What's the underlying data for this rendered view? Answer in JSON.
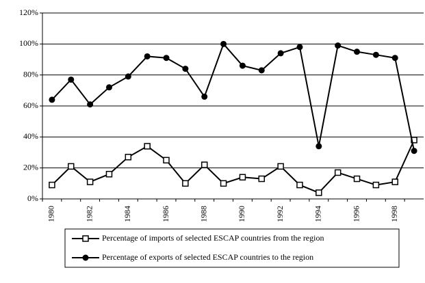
{
  "chart_data": {
    "type": "line",
    "categories": [
      "1980",
      null,
      "1982",
      null,
      "1984",
      null,
      "1986",
      null,
      "1988",
      null,
      "1990",
      null,
      "1992",
      null,
      "1994",
      null,
      "1996",
      null,
      "1998",
      null
    ],
    "series": [
      {
        "name": "Percentage of imports of selected ESCAP countries from the region",
        "color": "#000000",
        "marker": "square",
        "values": [
          9,
          21,
          11,
          16,
          27,
          34,
          25,
          10,
          22,
          10,
          14,
          13,
          21,
          9,
          4,
          17,
          13,
          9,
          11,
          38
        ]
      },
      {
        "name": "Percentage  of exports of selected ESCAP countries to the region",
        "color": "#000000",
        "marker": "circle",
        "values": [
          64,
          77,
          61,
          72,
          79,
          92,
          91,
          84,
          66,
          100,
          86,
          83,
          94,
          98,
          34,
          99,
          95,
          93,
          91,
          31
        ]
      }
    ],
    "ylim": [
      0,
      120
    ],
    "yticks": [
      {
        "value": 0,
        "label": "0%"
      },
      {
        "value": 20,
        "label": "20%"
      },
      {
        "value": 40,
        "label": "40%"
      },
      {
        "value": 60,
        "label": "60%"
      },
      {
        "value": 80,
        "label": "80%"
      },
      {
        "value": 100,
        "label": "100%"
      },
      {
        "value": 120,
        "label": "120%"
      }
    ],
    "grid": true,
    "legend": "bottom"
  }
}
